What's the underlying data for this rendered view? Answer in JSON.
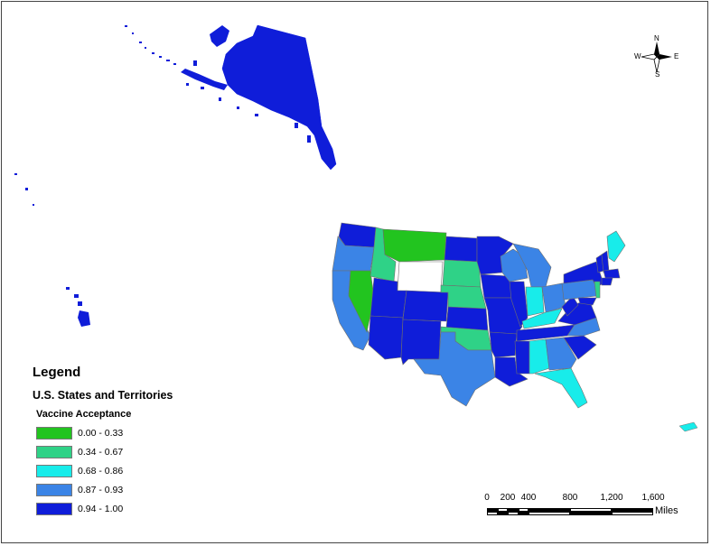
{
  "legend": {
    "title": "Legend",
    "subtitle": "U.S. States and Territories",
    "field": "Vaccine Acceptance",
    "classes": [
      {
        "range": "0.00 - 0.33",
        "color": "#22c41f"
      },
      {
        "range": "0.34 - 0.67",
        "color": "#2fd287"
      },
      {
        "range": "0.68 - 0.86",
        "color": "#18ecea"
      },
      {
        "range": "0.87 - 0.93",
        "color": "#3b84e6"
      },
      {
        "range": "0.94 - 1.00",
        "color": "#0f1dd9"
      }
    ]
  },
  "compass": {
    "n": "N",
    "s": "S",
    "e": "E",
    "w": "W"
  },
  "scale_bar": {
    "ticks": [
      "0",
      "200",
      "400",
      "800",
      "1,200",
      "1,600"
    ],
    "units": "Miles"
  },
  "colors": {
    "no_data": "#ffffff",
    "outline": "#6e6e6e"
  }
}
